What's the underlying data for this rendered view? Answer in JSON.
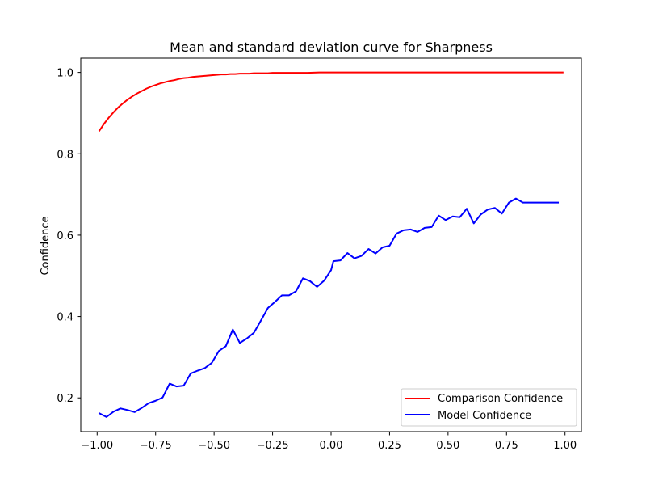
{
  "chart_data": {
    "type": "line",
    "title": "Mean and standard deviation curve for Sharpness",
    "xlabel": "",
    "ylabel": "Confidence",
    "xlim": [
      -1.07,
      1.07
    ],
    "ylim": [
      0.117,
      1.035
    ],
    "xticks": [
      -1.0,
      -0.75,
      -0.5,
      -0.25,
      0.0,
      0.25,
      0.5,
      0.75,
      1.0
    ],
    "xtick_labels": [
      "−1.00",
      "−0.75",
      "−0.50",
      "−0.25",
      "0.00",
      "0.25",
      "0.50",
      "0.75",
      "1.00"
    ],
    "yticks": [
      0.2,
      0.4,
      0.6,
      0.8,
      1.0
    ],
    "ytick_labels": [
      "0.2",
      "0.4",
      "0.6",
      "0.8",
      "1.0"
    ],
    "grid": false,
    "legend_position": "lower-right",
    "series": [
      {
        "name": "Comparison Confidence",
        "color": "#ff0000",
        "x": [
          -0.99,
          -0.97,
          -0.95,
          -0.93,
          -0.91,
          -0.89,
          -0.87,
          -0.85,
          -0.83,
          -0.81,
          -0.79,
          -0.77,
          -0.75,
          -0.73,
          -0.71,
          -0.69,
          -0.67,
          -0.65,
          -0.63,
          -0.61,
          -0.59,
          -0.57,
          -0.55,
          -0.53,
          -0.51,
          -0.49,
          -0.47,
          -0.45,
          -0.43,
          -0.41,
          -0.39,
          -0.37,
          -0.35,
          -0.33,
          -0.31,
          -0.29,
          -0.27,
          -0.25,
          -0.2,
          -0.15,
          -0.1,
          -0.05,
          0.0,
          0.1,
          0.2,
          0.3,
          0.4,
          0.5,
          0.6,
          0.7,
          0.8,
          0.9,
          0.99
        ],
        "y": [
          0.857,
          0.874,
          0.889,
          0.902,
          0.914,
          0.924,
          0.933,
          0.941,
          0.948,
          0.954,
          0.96,
          0.965,
          0.969,
          0.973,
          0.976,
          0.979,
          0.981,
          0.984,
          0.986,
          0.987,
          0.989,
          0.99,
          0.991,
          0.992,
          0.993,
          0.994,
          0.995,
          0.995,
          0.996,
          0.996,
          0.997,
          0.997,
          0.997,
          0.998,
          0.998,
          0.998,
          0.998,
          0.999,
          0.999,
          0.999,
          0.999,
          1.0,
          1.0,
          1.0,
          1.0,
          1.0,
          1.0,
          1.0,
          1.0,
          1.0,
          1.0,
          1.0,
          1.0
        ]
      },
      {
        "name": "Model Confidence",
        "color": "#0000ff",
        "x": [
          -0.99,
          -0.96,
          -0.93,
          -0.9,
          -0.87,
          -0.84,
          -0.81,
          -0.78,
          -0.75,
          -0.72,
          -0.69,
          -0.66,
          -0.63,
          -0.6,
          -0.57,
          -0.54,
          -0.51,
          -0.48,
          -0.45,
          -0.42,
          -0.39,
          -0.36,
          -0.33,
          -0.3,
          -0.27,
          -0.24,
          -0.21,
          -0.18,
          -0.15,
          -0.12,
          -0.09,
          -0.06,
          -0.03,
          0.0,
          0.01,
          0.04,
          0.07,
          0.1,
          0.13,
          0.16,
          0.19,
          0.22,
          0.25,
          0.28,
          0.31,
          0.34,
          0.37,
          0.4,
          0.43,
          0.46,
          0.49,
          0.52,
          0.55,
          0.58,
          0.61,
          0.64,
          0.67,
          0.7,
          0.73,
          0.76,
          0.79,
          0.82,
          0.85,
          0.88,
          0.91,
          0.94,
          0.97
        ],
        "y": [
          0.162,
          0.153,
          0.166,
          0.174,
          0.17,
          0.165,
          0.175,
          0.187,
          0.193,
          0.201,
          0.235,
          0.228,
          0.23,
          0.26,
          0.267,
          0.273,
          0.286,
          0.315,
          0.327,
          0.368,
          0.335,
          0.346,
          0.36,
          0.39,
          0.421,
          0.436,
          0.452,
          0.452,
          0.462,
          0.494,
          0.487,
          0.473,
          0.488,
          0.514,
          0.536,
          0.538,
          0.556,
          0.543,
          0.549,
          0.566,
          0.555,
          0.57,
          0.574,
          0.604,
          0.612,
          0.614,
          0.608,
          0.618,
          0.62,
          0.648,
          0.637,
          0.646,
          0.644,
          0.665,
          0.629,
          0.651,
          0.663,
          0.667,
          0.653,
          0.68,
          0.69,
          0.68,
          0.68,
          0.68,
          0.68,
          0.68,
          0.68
        ]
      }
    ]
  }
}
